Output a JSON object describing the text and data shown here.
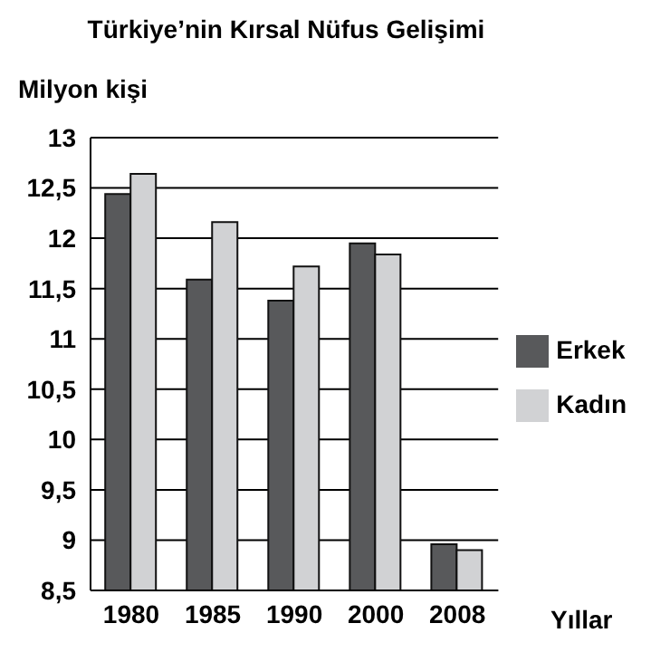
{
  "chart_data": {
    "type": "bar",
    "title": "Türkiye’nin Kırsal Nüfus Gelişimi",
    "ylabel": "Milyon kişi",
    "xlabel": "Yıllar",
    "categories": [
      "1980",
      "1985",
      "1990",
      "2000",
      "2008"
    ],
    "series": [
      {
        "name": "Erkek",
        "color": "#58595b",
        "values": [
          12.44,
          11.59,
          11.38,
          11.95,
          8.96
        ]
      },
      {
        "name": "Kadın",
        "color": "#d1d2d4",
        "values": [
          12.64,
          12.16,
          11.72,
          11.84,
          8.9
        ]
      }
    ],
    "ylim": [
      8.5,
      13
    ],
    "yticks": [
      {
        "value": 8.5,
        "label": "8,5"
      },
      9,
      {
        "value": 9.5,
        "label": "9,5"
      },
      10,
      {
        "value": 10.5,
        "label": "10,5"
      },
      11,
      {
        "value": 11.5,
        "label": "11,5"
      },
      12,
      {
        "value": 12.5,
        "label": "12,5"
      },
      13
    ],
    "grid": "y",
    "legend": "right"
  }
}
